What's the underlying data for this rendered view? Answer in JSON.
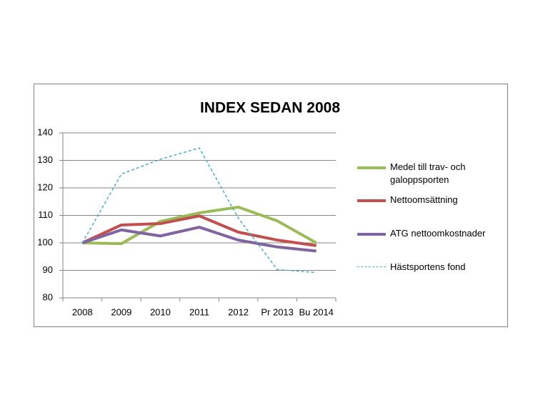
{
  "chart_data": {
    "type": "line",
    "title": "INDEX SEDAN 2008",
    "categories": [
      "2008",
      "2009",
      "2010",
      "2011",
      "2012",
      "Pr 2013",
      "Bu 2014"
    ],
    "series": [
      {
        "name": "Medel till trav- och galoppsporten",
        "color": "#9bbb59",
        "values": [
          100,
          99.7,
          107.8,
          110.9,
          113,
          108,
          100
        ]
      },
      {
        "name": "Nettoomsättning",
        "color": "#c0504d",
        "values": [
          100,
          106.5,
          107,
          109.8,
          103.9,
          101,
          99
        ]
      },
      {
        "name": "ATG nettoomkostnader",
        "color": "#8064a2",
        "values": [
          100,
          104.7,
          102.5,
          105.7,
          101,
          98.5,
          97
        ]
      },
      {
        "name": "Hästsportens fond",
        "color": "#4bacc6",
        "dashed": true,
        "values": [
          100,
          125,
          130.4,
          134.5,
          109,
          90.3,
          89.2
        ]
      }
    ],
    "ylim": [
      80,
      140
    ],
    "yticks": [
      80,
      90,
      100,
      110,
      120,
      130,
      140
    ],
    "grid": true,
    "legend": "right"
  }
}
